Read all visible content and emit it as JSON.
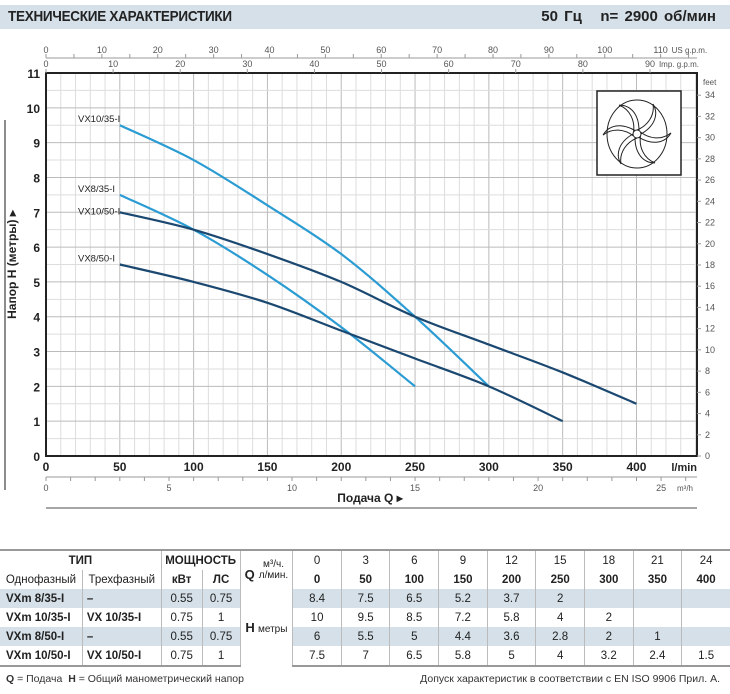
{
  "header": {
    "title": "ТЕХНИЧЕСКИЕ ХАРАКТЕРИСТИКИ",
    "freq": "50 Гц",
    "speed": "n= 2900  об/мин"
  },
  "chart_data": {
    "type": "line",
    "xlabel": "Подача  Q",
    "ylabel": "Напор  H  (метры)",
    "x_unit": "l/min",
    "xlim": [
      0,
      441
    ],
    "ylim": [
      0,
      11
    ],
    "x_ticks": [
      0,
      50,
      100,
      150,
      200,
      250,
      300,
      350,
      400
    ],
    "y_ticks": [
      0,
      1,
      2,
      3,
      4,
      5,
      6,
      7,
      8,
      9,
      10,
      11
    ],
    "grid": true,
    "secondary_axes": {
      "us_gpm": {
        "label": "US g.p.m.",
        "ticks": [
          0,
          10,
          20,
          30,
          40,
          50,
          60,
          70,
          80,
          90,
          100,
          110
        ]
      },
      "imp_gpm": {
        "label": "Imp. g.p.m.",
        "ticks": [
          0,
          10,
          20,
          30,
          40,
          50,
          60,
          70,
          80,
          90
        ]
      },
      "m3h": {
        "label": "m³/h",
        "ticks": [
          0,
          5,
          10,
          15,
          20,
          25
        ]
      },
      "feet": {
        "label": "feet",
        "ticks": [
          0,
          2,
          4,
          6,
          8,
          10,
          12,
          14,
          16,
          18,
          20,
          22,
          24,
          26,
          28,
          30,
          32,
          34
        ]
      }
    },
    "series": [
      {
        "name": "VX10/35-I",
        "color": "#2b9cd3",
        "x": [
          50,
          100,
          150,
          200,
          250,
          300
        ],
        "y": [
          9.5,
          8.5,
          7.2,
          5.8,
          4,
          2
        ]
      },
      {
        "name": "VX8/35-I",
        "color": "#2b9cd3",
        "x": [
          50,
          100,
          150,
          200,
          250
        ],
        "y": [
          7.5,
          6.5,
          5.2,
          3.7,
          2
        ]
      },
      {
        "name": "VX10/50-I",
        "color": "#1b4870",
        "x": [
          50,
          100,
          150,
          200,
          250,
          300,
          350,
          400
        ],
        "y": [
          7,
          6.5,
          5.8,
          5,
          4,
          3.2,
          2.4,
          1.5
        ]
      },
      {
        "name": "VX8/50-I",
        "color": "#1b4870",
        "x": [
          50,
          100,
          150,
          200,
          250,
          300,
          350
        ],
        "y": [
          5.5,
          5,
          4.4,
          3.6,
          2.8,
          2,
          1
        ]
      }
    ]
  },
  "table": {
    "type_header": "ТИП",
    "power_header": "МОЩНОСТЬ",
    "single_phase": "Однофазный",
    "three_phase": "Трехфазный",
    "kw": "кВт",
    "hp": "ЛС",
    "q_label": "Q",
    "q_unit1": "м³/ч.",
    "q_unit2": "л/мин.",
    "h_label": "H",
    "h_unit": "метры",
    "m3h": [
      "0",
      "3",
      "6",
      "9",
      "12",
      "15",
      "18",
      "21",
      "24"
    ],
    "lmin": [
      "0",
      "50",
      "100",
      "150",
      "200",
      "250",
      "300",
      "350",
      "400"
    ],
    "rows": [
      {
        "single": "VXm 8/35-I",
        "three": "–",
        "kw": "0.55",
        "hp": "0.75",
        "h": [
          "8.4",
          "7.5",
          "6.5",
          "5.2",
          "3.7",
          "2",
          "",
          "",
          ""
        ]
      },
      {
        "single": "VXm 10/35-I",
        "three": "VX 10/35-I",
        "kw": "0.75",
        "hp": "1",
        "h": [
          "10",
          "9.5",
          "8.5",
          "7.2",
          "5.8",
          "4",
          "2",
          "",
          ""
        ]
      },
      {
        "single": "VXm 8/50-I",
        "three": "–",
        "kw": "0.55",
        "hp": "0.75",
        "h": [
          "6",
          "5.5",
          "5",
          "4.4",
          "3.6",
          "2.8",
          "2",
          "1",
          ""
        ]
      },
      {
        "single": "VXm 10/50-I",
        "three": "VX 10/50-I",
        "kw": "0.75",
        "hp": "1",
        "h": [
          "7.5",
          "7",
          "6.5",
          "5.8",
          "5",
          "4",
          "3.2",
          "2.4",
          "1.5"
        ]
      }
    ]
  },
  "footer": {
    "legend_q": "Q",
    "legend_q_text": " = Подача",
    "legend_h": "H",
    "legend_h_text": " = Общий манометрический напор",
    "tolerance": "Допуск характеристик в соответствии с EN ISO 9906 Прил. А."
  }
}
